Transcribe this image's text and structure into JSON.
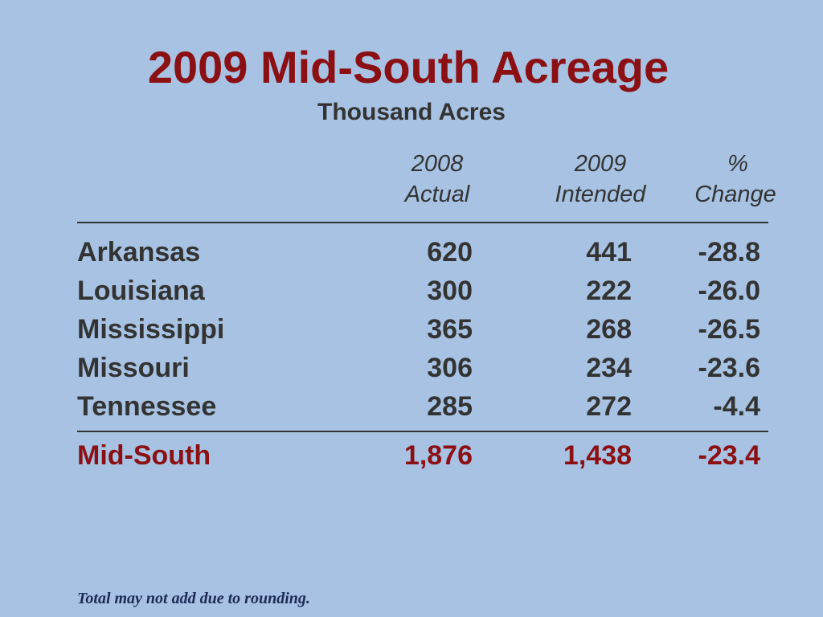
{
  "title": "2009 Mid-South Acreage",
  "subtitle": "Thousand Acres",
  "columns": [
    {
      "line1": "2008",
      "line2": "Actual"
    },
    {
      "line1": "2009",
      "line2": "Intended"
    },
    {
      "line1": "%",
      "line2": "Change"
    }
  ],
  "rows": [
    {
      "state": "Arkansas",
      "actual_2008": "620",
      "intended_2009": "441",
      "pct_change": "-28.8"
    },
    {
      "state": "Louisiana",
      "actual_2008": "300",
      "intended_2009": "222",
      "pct_change": "-26.0"
    },
    {
      "state": "Mississippi",
      "actual_2008": "365",
      "intended_2009": "268",
      "pct_change": "-26.5"
    },
    {
      "state": "Missouri",
      "actual_2008": "306",
      "intended_2009": "234",
      "pct_change": "-23.6"
    },
    {
      "state": "Tennessee",
      "actual_2008": "285",
      "intended_2009": "272",
      "pct_change": "-4.4"
    }
  ],
  "total": {
    "state": "Mid-South",
    "actual_2008": "1,876",
    "intended_2009": "1,438",
    "pct_change": "-23.4"
  },
  "footnote": "Total may not add due to rounding.",
  "colors": {
    "background": "#a7c2e2",
    "title": "#8b1014",
    "text": "#333333",
    "footnote": "#1e2b55"
  }
}
